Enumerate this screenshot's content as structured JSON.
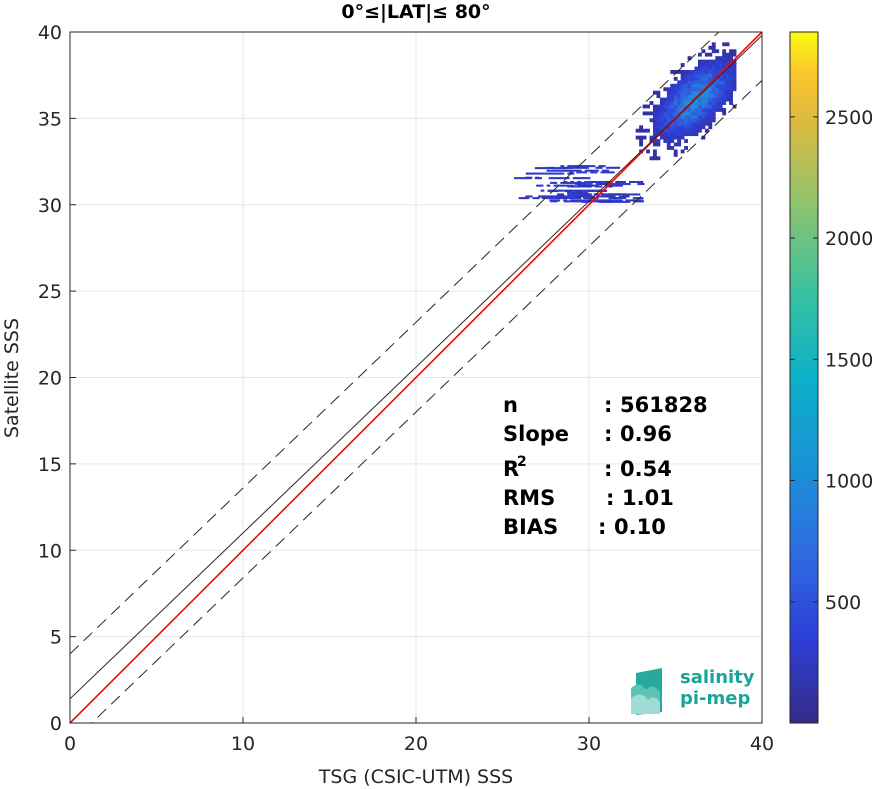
{
  "chart_data": {
    "type": "heatmap",
    "title": "0°≤|LAT|≤ 80°",
    "xlabel": "TSG (CSIC-UTM) SSS",
    "ylabel": "Satellite SSS",
    "xlim": [
      0,
      40
    ],
    "ylim": [
      0,
      40
    ],
    "xticks": [
      "0",
      "10",
      "20",
      "30",
      "40"
    ],
    "yticks": [
      "0",
      "5",
      "10",
      "15",
      "20",
      "25",
      "30",
      "35",
      "40"
    ],
    "grid": true,
    "lines": [
      {
        "name": "1:1",
        "color": "#ff0000",
        "intercept": 0,
        "slope": 1
      },
      {
        "name": "fit",
        "color": "#262626",
        "intercept": 1.4,
        "slope": 0.96
      },
      {
        "name": "upper",
        "color": "#262626",
        "dash": true,
        "intercept": 4,
        "slope": 0.96
      },
      {
        "name": "lower",
        "color": "#262626",
        "dash": true,
        "intercept": -1.2,
        "slope": 0.96
      }
    ],
    "density": {
      "core": {
        "x": 36,
        "y": 36,
        "sx": 1.2,
        "sy": 1.6,
        "peak": 1100
      },
      "tail": {
        "x_range": [
          25.5,
          33
        ],
        "y_range": [
          30,
          32.2
        ]
      }
    },
    "colorbar": {
      "ticks": [
        "500",
        "1000",
        "1500",
        "2000",
        "2500"
      ],
      "tick_values": [
        500,
        1000,
        1500,
        2000,
        2500
      ],
      "range": [
        0,
        2850
      ],
      "colormap": "parula"
    },
    "stats": [
      {
        "label": "n",
        "sep": ":",
        "value": "561828"
      },
      {
        "label": "Slope",
        "sep": ":",
        "value": "0.96"
      },
      {
        "label": "R",
        "sup": "2",
        "sep": ":",
        "value": "0.54"
      },
      {
        "label": "RMS",
        "sep": ":",
        "value": "1.01"
      },
      {
        "label": "BIAS",
        "sep": ":",
        "value": "0.10"
      }
    ]
  },
  "logo": {
    "line1": "salinity",
    "line2": "pi-mep"
  },
  "colors": {
    "accent": "#1aa59a",
    "one_to_one": "#ff0000",
    "axis": "#262626"
  }
}
